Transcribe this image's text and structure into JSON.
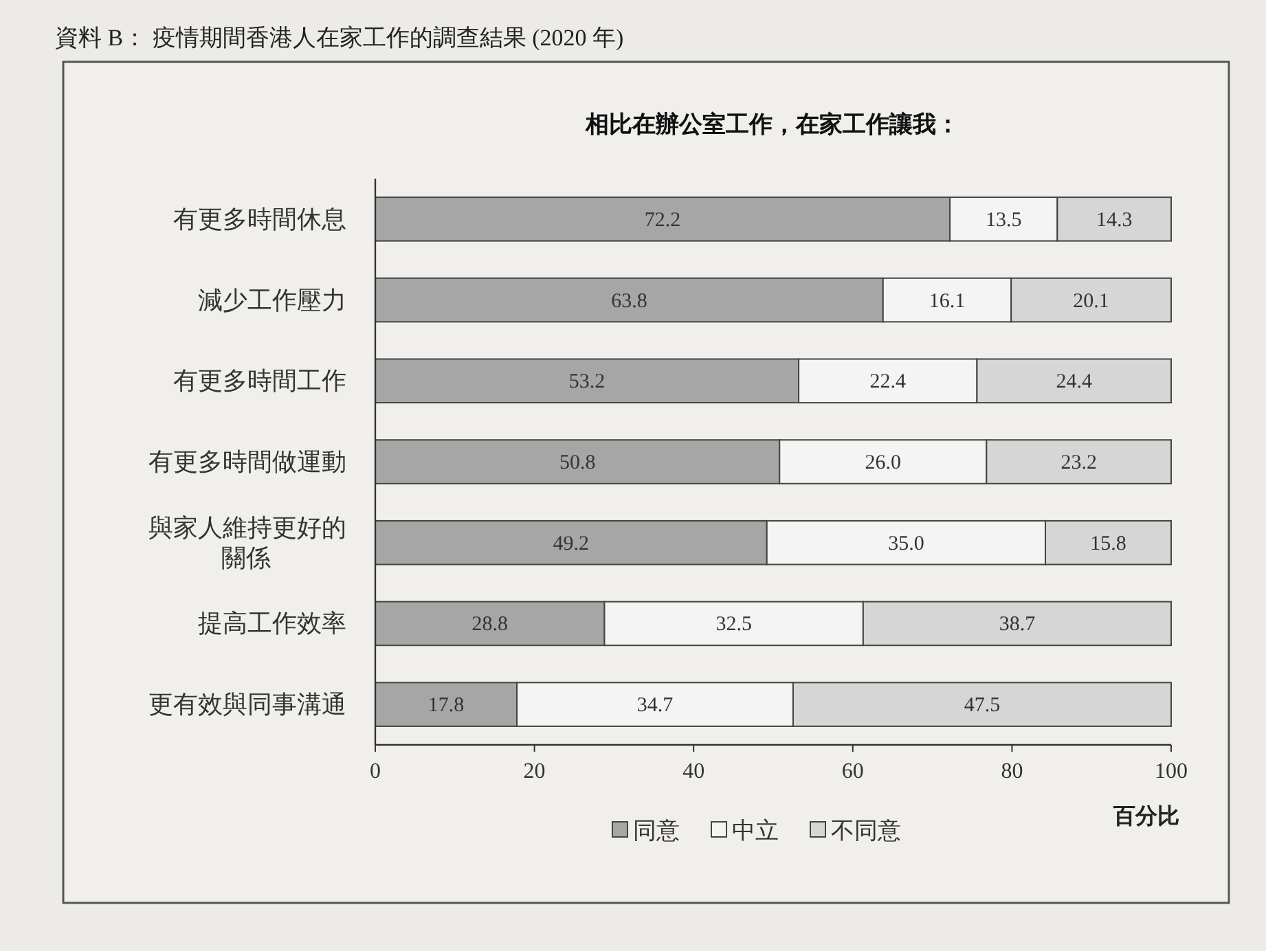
{
  "chart_data": {
    "type": "bar",
    "orientation": "horizontal",
    "stacked": true,
    "title": "資料 B：  疫情期間香港人在家工作的調查結果 (2020 年)",
    "subtitle": "相比在辦公室工作，在家工作讓我：",
    "xlabel": "百分比",
    "categories": [
      "有更多時間休息",
      "減少工作壓力",
      "有更多時間工作",
      "有更多時間做運動",
      "與家人維持更好的關係",
      "提高工作效率",
      "更有效與同事溝通"
    ],
    "series": [
      {
        "name": "同意",
        "color": "#a6a6a6",
        "values": [
          72.2,
          63.8,
          53.2,
          50.8,
          49.2,
          28.8,
          17.8
        ],
        "value_labels": [
          "72.2",
          "63.8",
          "53.2",
          "50.8",
          "49.2",
          "28.8",
          "17.8"
        ]
      },
      {
        "name": "中立",
        "color": "#f4f4f4",
        "values": [
          13.5,
          16.1,
          22.4,
          26.0,
          35.0,
          32.5,
          34.7
        ],
        "value_labels": [
          "13.5",
          "16.1",
          "22.4",
          "26.0",
          "35.0",
          "32.5",
          "34.7"
        ]
      },
      {
        "name": "不同意",
        "color": "#d6d6d6",
        "values": [
          14.3,
          20.1,
          24.4,
          23.2,
          15.8,
          38.7,
          47.5
        ],
        "value_labels": [
          "14.3",
          "20.1",
          "24.4",
          "23.2",
          "15.8",
          "38.7",
          "47.5"
        ]
      }
    ],
    "xlim": [
      0,
      100
    ],
    "xticks": [
      0,
      20,
      40,
      60,
      80,
      100
    ],
    "legend": "bottom"
  }
}
